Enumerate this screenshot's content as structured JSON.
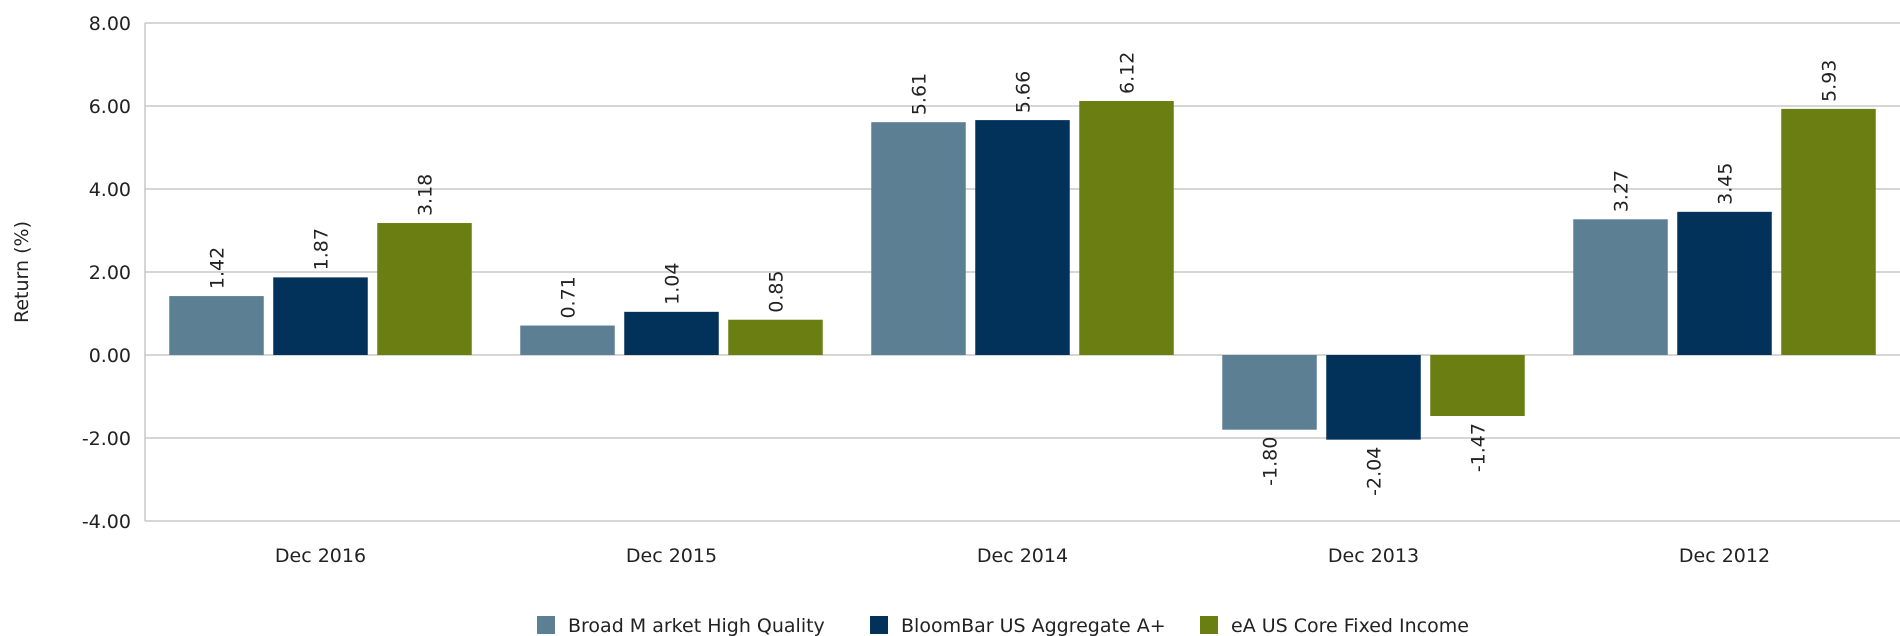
{
  "chart_data": {
    "type": "bar",
    "ylabel": "Return (%)",
    "categories": [
      "Dec 2016",
      "Dec 2015",
      "Dec 2014",
      "Dec 2013",
      "Dec 2012"
    ],
    "series": [
      {
        "name": "Broad M arket High Quality",
        "color": "#5d7f94",
        "values": [
          1.42,
          0.71,
          5.61,
          -1.8,
          3.27
        ],
        "value_labels": [
          "1.42",
          "0.71",
          "5.61",
          "-1.80",
          "3.27"
        ]
      },
      {
        "name": "BloomBar US Aggregate A+",
        "color": "#023159",
        "values": [
          1.87,
          1.04,
          5.66,
          -2.04,
          3.45
        ],
        "value_labels": [
          "1.87",
          "1.04",
          "5.66",
          "-2.04",
          "3.45"
        ]
      },
      {
        "name": "eA US Core Fixed Income",
        "color": "#6a7e12",
        "values": [
          3.18,
          0.85,
          6.12,
          -1.47,
          5.93
        ],
        "value_labels": [
          "3.18",
          "0.85",
          "6.12",
          "-1.47",
          "5.93"
        ]
      }
    ],
    "ylim": [
      -4,
      8
    ],
    "yticks": [
      {
        "value": -4,
        "label": "-4.00"
      },
      {
        "value": -2,
        "label": "-2.00"
      },
      {
        "value": 0,
        "label": "0.00"
      },
      {
        "value": 2,
        "label": "2.00"
      },
      {
        "value": 4,
        "label": "4.00"
      },
      {
        "value": 6,
        "label": "6.00"
      },
      {
        "value": 8,
        "label": "8.00"
      }
    ],
    "grid": true,
    "legend": "bottom"
  }
}
